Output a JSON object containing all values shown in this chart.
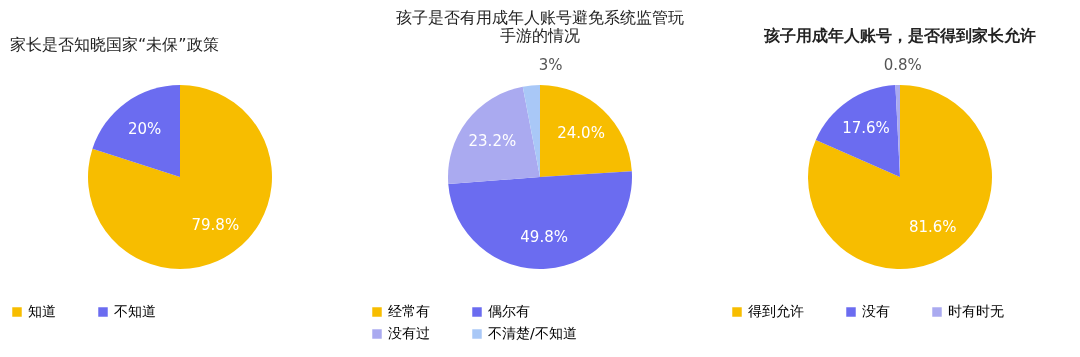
{
  "chart_data": [
    {
      "type": "pie",
      "title": "家长是否知晓国家“未保”政策",
      "categories": [
        "知道",
        "不知道"
      ],
      "values": [
        79.8,
        20
      ],
      "colors": [
        "#f7bd00",
        "#6b6cf0"
      ],
      "value_labels": [
        "79.8%",
        "20%"
      ],
      "legend": "bottom"
    },
    {
      "type": "pie",
      "title": "孩子是否有用成年人账号避免系统监管玩手游的情况",
      "categories": [
        "经常有",
        "偶尔有",
        "没有过",
        "不清楚/不知道"
      ],
      "values": [
        24.0,
        49.8,
        23.2,
        3
      ],
      "colors": [
        "#f7bd00",
        "#6b6cf0",
        "#aaaaf0",
        "#a9c8f7"
      ],
      "value_labels": [
        "24.0%",
        "49.8%",
        "23.2%",
        "3%"
      ],
      "legend": "bottom"
    },
    {
      "type": "pie",
      "title": "孩子用成年人账号，是否得到家长允许",
      "categories": [
        "得到允许",
        "没有",
        "时有时无"
      ],
      "values": [
        81.6,
        17.6,
        0.8
      ],
      "colors": [
        "#f7bd00",
        "#6b6cf0",
        "#aaaaf0"
      ],
      "value_labels": [
        "81.6%",
        "17.6%",
        "0.8%"
      ],
      "legend": "bottom"
    }
  ]
}
